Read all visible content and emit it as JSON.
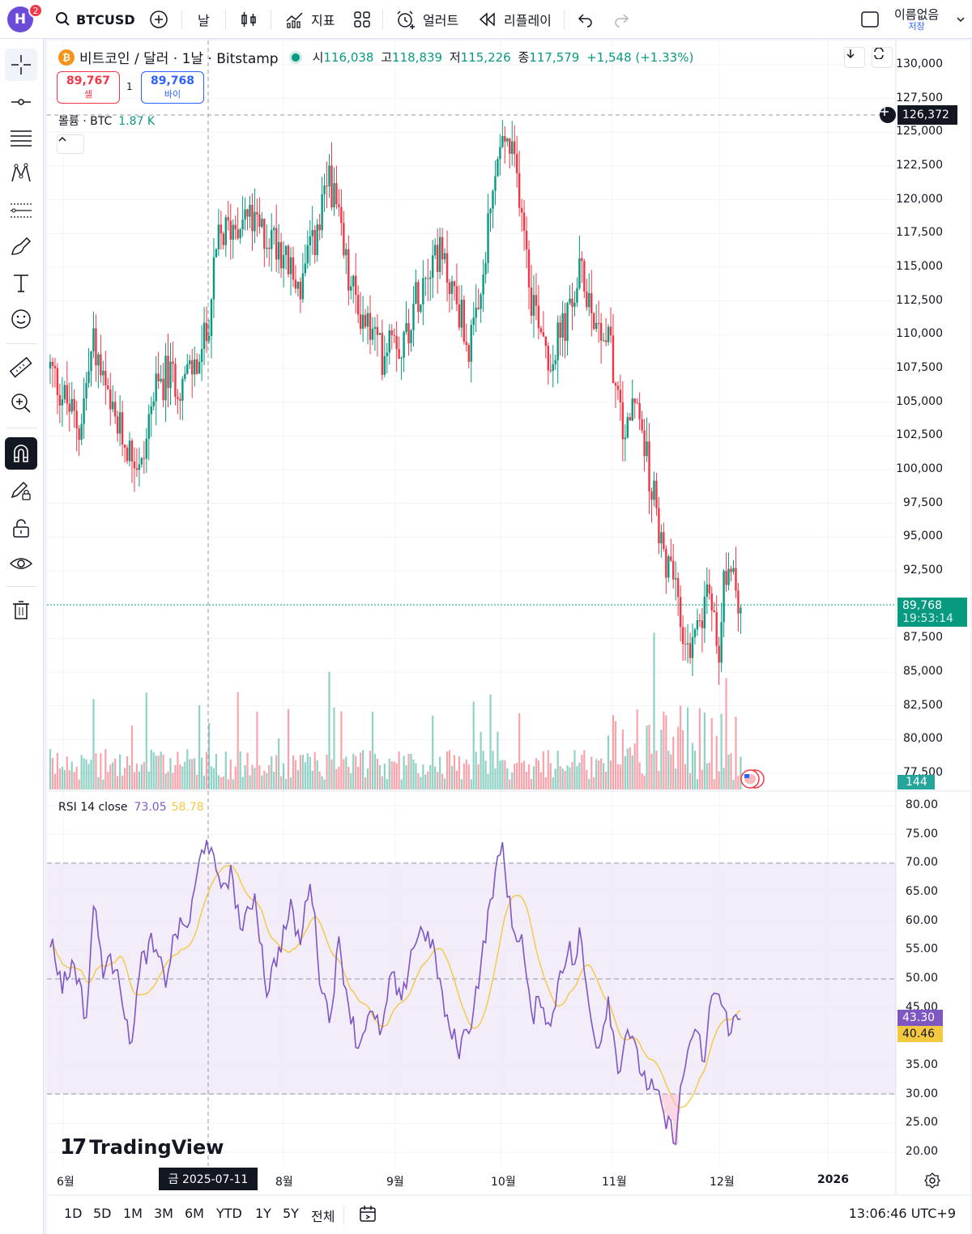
{
  "header": {
    "avatar_letter": "H",
    "notification_count": "2",
    "symbol": "BTCUSD",
    "interval": "날",
    "indicators_label": "지표",
    "alert_label": "얼러트",
    "replay_label": "리플레이",
    "layout_name": "이름없음",
    "save_label": "저장"
  },
  "legend": {
    "title": "비트코인 / 달러 · 1날 · Bitstamp",
    "open_key": "시",
    "open": "116,038",
    "high_key": "고",
    "high": "118,839",
    "low_key": "저",
    "low": "115,226",
    "close_key": "종",
    "close": "117,579",
    "change": "+1,548 (+1.33%)"
  },
  "trade": {
    "sell_price": "89,767",
    "sell_label": "셀",
    "quantity": "1",
    "buy_price": "89,768",
    "buy_label": "바이"
  },
  "volume_legend": {
    "label": "볼륨 · BTC",
    "value": "1.87 K"
  },
  "rsi_legend": {
    "label": "RSI 14 close",
    "rsi": "73.05",
    "ma": "58.78"
  },
  "price_axis": {
    "labels": [
      "130,000",
      "127,500",
      "125,000",
      "122,500",
      "120,000",
      "117,500",
      "115,000",
      "112,500",
      "110,000",
      "107,500",
      "105,000",
      "102,500",
      "100,000",
      "97,500",
      "95,000",
      "92,500",
      "87,500",
      "85,000",
      "82,500",
      "80,000",
      "77,500"
    ],
    "crosshair_price": "126,372",
    "last_price": "89,768",
    "countdown": "19:53:14",
    "volume_tag": "144"
  },
  "rsi_axis": {
    "labels": [
      "80.00",
      "75.00",
      "70.00",
      "65.00",
      "60.00",
      "55.00",
      "50.00",
      "45.00",
      "35.00",
      "30.00",
      "25.00",
      "20.00"
    ],
    "rsi_tag": "43.30",
    "ma_tag": "40.46"
  },
  "time_axis": {
    "labels": [
      "6월",
      "8월",
      "9월",
      "10월",
      "11월",
      "12월",
      "2026"
    ],
    "crosshair_date": "금 2025-07-11"
  },
  "brand": "TradingView",
  "bottom": {
    "ranges": [
      "1D",
      "5D",
      "1M",
      "3M",
      "6M",
      "YTD",
      "1Y",
      "5Y",
      "전체"
    ],
    "clock": "13:06:46 UTC+9"
  },
  "colors": {
    "up": "#089981",
    "down": "#f23645",
    "rsi": "#7e57c2",
    "rsi_ma": "#f5c842",
    "band": "#ede7f6"
  },
  "chart_data": {
    "type": "candlestick",
    "price_range": [
      77500,
      130000
    ],
    "rsi_range": [
      20,
      80
    ],
    "rsi_band": [
      30,
      70
    ],
    "last_price": 89768,
    "crosshair_price": 126372,
    "anchor_closes": [
      [
        0,
        107500
      ],
      [
        8,
        104500
      ],
      [
        12,
        103000
      ],
      [
        18,
        109500
      ],
      [
        25,
        104000
      ],
      [
        33,
        101500
      ],
      [
        38,
        100000
      ],
      [
        42,
        105000
      ],
      [
        48,
        107000
      ],
      [
        55,
        106500
      ],
      [
        62,
        108000
      ],
      [
        65,
        110000
      ],
      [
        70,
        117000
      ],
      [
        75,
        118000
      ],
      [
        80,
        119000
      ],
      [
        88,
        117500
      ],
      [
        95,
        117000
      ],
      [
        100,
        114500
      ],
      [
        104,
        113500
      ],
      [
        108,
        116000
      ],
      [
        112,
        118000
      ],
      [
        116,
        122000
      ],
      [
        120,
        118000
      ],
      [
        124,
        114000
      ],
      [
        128,
        112000
      ],
      [
        134,
        110000
      ],
      [
        138,
        108500
      ],
      [
        142,
        111000
      ],
      [
        146,
        109000
      ],
      [
        150,
        111500
      ],
      [
        156,
        115000
      ],
      [
        160,
        116500
      ],
      [
        165,
        114500
      ],
      [
        170,
        112000
      ],
      [
        174,
        109000
      ],
      [
        178,
        111000
      ],
      [
        182,
        117500
      ],
      [
        186,
        123000
      ],
      [
        189,
        124500
      ],
      [
        192,
        123000
      ],
      [
        196,
        120000
      ],
      [
        200,
        113000
      ],
      [
        204,
        111000
      ],
      [
        208,
        108000
      ],
      [
        212,
        110000
      ],
      [
        216,
        111500
      ],
      [
        220,
        114500
      ],
      [
        224,
        113000
      ],
      [
        228,
        110500
      ],
      [
        232,
        110000
      ],
      [
        236,
        104500
      ],
      [
        240,
        103000
      ],
      [
        244,
        105000
      ],
      [
        248,
        101000
      ],
      [
        252,
        96500
      ],
      [
        256,
        93000
      ],
      [
        260,
        91000
      ],
      [
        263,
        87500
      ],
      [
        266,
        85000
      ],
      [
        270,
        89000
      ],
      [
        274,
        91000
      ],
      [
        278,
        86500
      ],
      [
        280,
        92000
      ],
      [
        283,
        93500
      ],
      [
        285,
        89500
      ],
      [
        287,
        90000
      ]
    ],
    "rsi_anchors": [
      [
        0,
        57
      ],
      [
        5,
        49
      ],
      [
        10,
        53
      ],
      [
        15,
        43
      ],
      [
        18,
        63
      ],
      [
        22,
        52
      ],
      [
        28,
        53
      ],
      [
        33,
        38
      ],
      [
        38,
        53
      ],
      [
        42,
        56
      ],
      [
        48,
        50
      ],
      [
        52,
        58
      ],
      [
        58,
        60
      ],
      [
        62,
        70
      ],
      [
        65,
        75
      ],
      [
        70,
        66
      ],
      [
        75,
        68
      ],
      [
        80,
        58
      ],
      [
        85,
        65
      ],
      [
        90,
        48
      ],
      [
        95,
        55
      ],
      [
        100,
        62
      ],
      [
        104,
        56
      ],
      [
        108,
        68
      ],
      [
        112,
        51
      ],
      [
        116,
        43
      ],
      [
        120,
        56
      ],
      [
        124,
        46
      ],
      [
        128,
        38
      ],
      [
        132,
        44
      ],
      [
        138,
        41
      ],
      [
        142,
        51
      ],
      [
        146,
        45
      ],
      [
        150,
        55
      ],
      [
        155,
        59
      ],
      [
        160,
        54
      ],
      [
        165,
        42
      ],
      [
        170,
        38
      ],
      [
        175,
        43
      ],
      [
        180,
        55
      ],
      [
        184,
        66
      ],
      [
        188,
        73
      ],
      [
        192,
        59
      ],
      [
        196,
        57
      ],
      [
        200,
        43
      ],
      [
        204,
        47
      ],
      [
        208,
        41
      ],
      [
        212,
        52
      ],
      [
        216,
        55
      ],
      [
        218,
        52
      ],
      [
        220,
        58
      ],
      [
        224,
        45
      ],
      [
        228,
        38
      ],
      [
        232,
        47
      ],
      [
        236,
        34
      ],
      [
        240,
        42
      ],
      [
        244,
        36
      ],
      [
        248,
        32
      ],
      [
        252,
        30
      ],
      [
        256,
        25
      ],
      [
        260,
        23
      ],
      [
        262,
        30
      ],
      [
        266,
        40
      ],
      [
        270,
        39
      ],
      [
        272,
        35
      ],
      [
        275,
        48
      ],
      [
        278,
        47
      ],
      [
        280,
        44
      ],
      [
        282,
        42
      ],
      [
        287,
        43
      ]
    ]
  }
}
